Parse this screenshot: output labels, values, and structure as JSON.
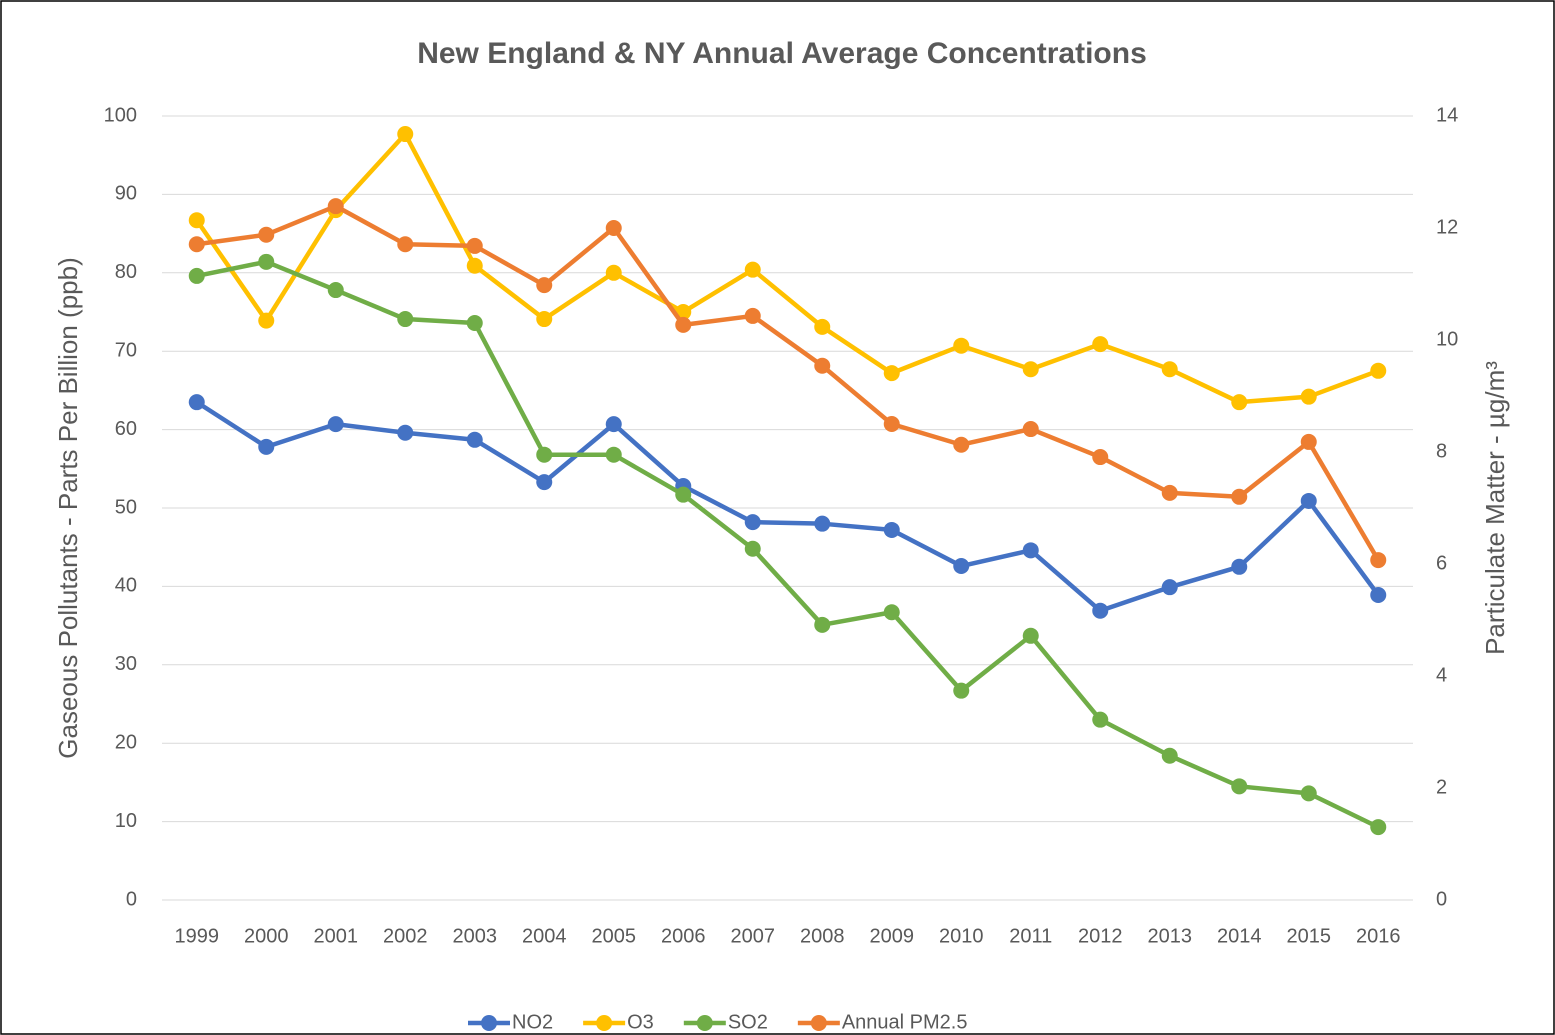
{
  "chart_data": {
    "type": "line",
    "title": "New England & NY Annual Average Concentrations",
    "y_label": "Gaseous Pollutants - Parts Per Billion (ppb)",
    "y2_label": "Particulate Matter - µg/m³",
    "categories": [
      "1999",
      "2000",
      "2001",
      "2002",
      "2003",
      "2004",
      "2005",
      "2006",
      "2007",
      "2008",
      "2009",
      "2010",
      "2011",
      "2012",
      "2013",
      "2014",
      "2015",
      "2016"
    ],
    "ylim": [
      0,
      100
    ],
    "yticks": [
      0,
      10,
      20,
      30,
      40,
      50,
      60,
      70,
      80,
      90,
      100
    ],
    "y2lim": [
      0,
      14
    ],
    "y2ticks": [
      0,
      2,
      4,
      6,
      8,
      10,
      12,
      14
    ],
    "grid": true,
    "legend": "bottom",
    "series": [
      {
        "name": "NO2",
        "color": "#4472c4",
        "values": [
          63.5,
          57.8,
          60.7,
          59.6,
          58.7,
          53.3,
          60.7,
          52.8,
          48.2,
          48,
          47.2,
          42.6,
          44.6,
          36.9,
          39.9,
          42.5,
          50.9,
          38.9
        ]
      },
      {
        "name": "O3",
        "color": "#ffc000",
        "values": [
          86.7,
          73.9,
          88,
          97.7,
          80.9,
          74.1,
          80,
          75,
          80.4,
          73.1,
          67.2,
          70.7,
          67.7,
          70.9,
          67.7,
          63.5,
          64.2,
          67.5
        ]
      },
      {
        "name": "SO2",
        "color": "#70ad47",
        "values": [
          79.6,
          81.4,
          77.8,
          74.1,
          73.6,
          56.8,
          56.8,
          51.7,
          44.8,
          35.1,
          36.7,
          26.7,
          33.7,
          23,
          18.4,
          14.5,
          13.6,
          9.3
        ]
      },
      {
        "name": "Annual PM2.5",
        "color": "#ed7d31",
        "axis": "y2",
        "values": [
          11.71,
          11.88,
          12.39,
          11.71,
          11.68,
          10.98,
          12,
          10.27,
          10.43,
          9.54,
          8.5,
          8.13,
          8.41,
          7.91,
          7.27,
          7.2,
          8.18,
          6.07
        ]
      }
    ]
  }
}
